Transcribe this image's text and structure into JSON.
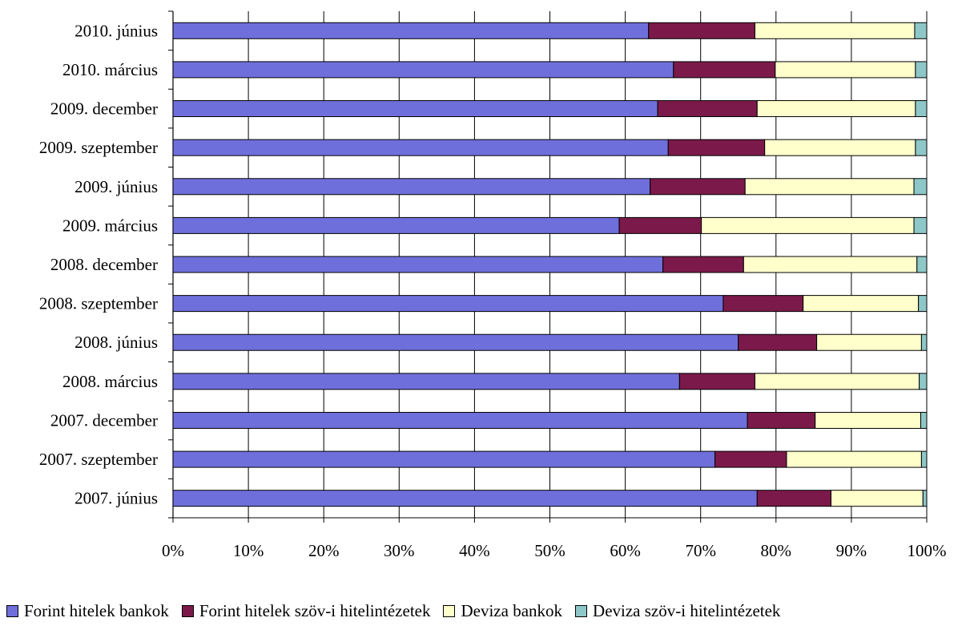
{
  "chart_data": {
    "type": "bar",
    "orientation": "horizontal",
    "stacked": true,
    "percent_stacked": true,
    "categories": [
      "2010. június",
      "2010. március",
      "2009. december",
      "2009. szeptember",
      "2009. június",
      "2009. március",
      "2008. december",
      "2008. szeptember",
      "2008. június",
      "2008. március",
      "2007. december",
      "2007. szeptember",
      "2007. június"
    ],
    "series": [
      {
        "name": "Forint hitelek bankok",
        "color": "#6F6FDB",
        "values": [
          63.1,
          66.4,
          64.3,
          65.7,
          63.3,
          59.2,
          65.0,
          73.0,
          75.0,
          67.2,
          76.2,
          71.9,
          77.5
        ]
      },
      {
        "name": "Forint hitelek szöv-i hitelintézetek",
        "color": "#7B1A4A",
        "values": [
          14.1,
          13.5,
          13.2,
          12.8,
          12.6,
          10.9,
          10.7,
          10.6,
          10.4,
          10.0,
          9.0,
          9.5,
          9.8
        ]
      },
      {
        "name": "Deviza bankok",
        "color": "#FFFFCC",
        "values": [
          21.2,
          18.6,
          21.0,
          20.0,
          22.4,
          28.2,
          23.0,
          15.3,
          13.9,
          21.8,
          14.0,
          17.9,
          12.2
        ]
      },
      {
        "name": "Deviza szöv-i hitelintézetek",
        "color": "#8EC7C7",
        "values": [
          1.6,
          1.5,
          1.5,
          1.5,
          1.7,
          1.7,
          1.3,
          1.1,
          0.7,
          1.0,
          0.8,
          0.7,
          0.5
        ]
      }
    ],
    "x_ticks": [
      "0%",
      "10%",
      "20%",
      "30%",
      "40%",
      "50%",
      "60%",
      "70%",
      "80%",
      "90%",
      "100%"
    ],
    "xlim": [
      0,
      100
    ],
    "grid": "vertical gridlines",
    "legend_position": "bottom"
  }
}
